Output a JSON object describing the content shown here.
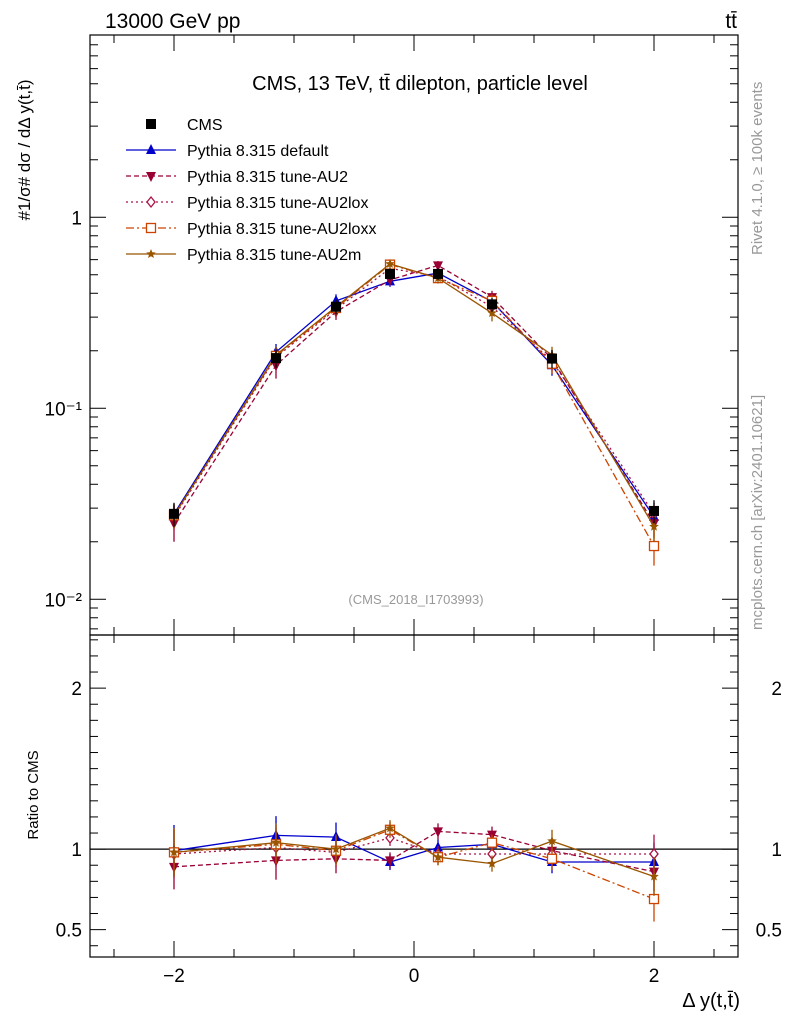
{
  "header": {
    "left": "13000 GeV pp",
    "right": "tt̄"
  },
  "side_labels": {
    "rivet": "Rivet 4.1.0, ≥ 100k events",
    "mcplots": "mcplots.cern.ch [arXiv:2401.10621]"
  },
  "chart_data": [
    {
      "type": "line",
      "panel": "main",
      "title": "CMS, 13 TeV, tt̄ dilepton, particle level",
      "watermark": "(CMS_2018_I1703993)",
      "ylabel": "#1/σ# dσ / dΔ y(t,t̄)",
      "yscale": "log",
      "ylim": [
        0.0065,
        9
      ],
      "xlim": [
        -2.7,
        2.7
      ],
      "ytick_labels": [
        {
          "value": 1,
          "label": "1"
        },
        {
          "value": 0.1,
          "label": "10⁻¹"
        },
        {
          "value": 0.01,
          "label": "10⁻²"
        }
      ],
      "x": [
        -2.0,
        -1.15,
        -0.65,
        -0.2,
        0.2,
        0.65,
        1.15,
        2.0
      ],
      "series": [
        {
          "name": "CMS",
          "color": "#000000",
          "marker": "square",
          "values": [
            0.028,
            0.183,
            0.34,
            0.505,
            0.505,
            0.35,
            0.182,
            0.029
          ],
          "errors": [
            0.004,
            0.02,
            0.03,
            0.035,
            0.035,
            0.03,
            0.02,
            0.004
          ]
        },
        {
          "name": "Pythia 8.315 default",
          "color": "#0000cc",
          "marker": "triangle-up",
          "dash": "",
          "values": [
            0.028,
            0.197,
            0.365,
            0.462,
            0.51,
            0.362,
            0.168,
            0.027
          ],
          "errors": [
            0.003,
            0.02,
            0.03,
            0.03,
            0.03,
            0.03,
            0.02,
            0.003
          ]
        },
        {
          "name": "Pythia 8.315 tune-AU2",
          "color": "#990033",
          "marker": "triangle-down",
          "dash": "5,3",
          "values": [
            0.025,
            0.168,
            0.32,
            0.47,
            0.56,
            0.382,
            0.181,
            0.025
          ],
          "errors": [
            0.005,
            0.025,
            0.03,
            0.03,
            0.03,
            0.03,
            0.02,
            0.004
          ]
        },
        {
          "name": "Pythia 8.315 tune-AU2lox",
          "color": "#aa1144",
          "marker": "diamond-open",
          "dash": "2,3",
          "values": [
            0.027,
            0.185,
            0.33,
            0.54,
            0.49,
            0.34,
            0.177,
            0.028
          ],
          "errors": [
            0.004,
            0.02,
            0.03,
            0.03,
            0.03,
            0.03,
            0.02,
            0.004
          ]
        },
        {
          "name": "Pythia 8.315 tune-AU2loxx",
          "color": "#cc4400",
          "marker": "square-open",
          "dash": "8,3,2,3",
          "values": [
            0.0275,
            0.188,
            0.335,
            0.565,
            0.48,
            0.365,
            0.171,
            0.019
          ],
          "errors": [
            0.004,
            0.02,
            0.03,
            0.03,
            0.03,
            0.03,
            0.02,
            0.004
          ]
        },
        {
          "name": "Pythia 8.315 tune-AU2m",
          "color": "#995500",
          "marker": "star",
          "dash": "",
          "values": [
            0.0275,
            0.19,
            0.34,
            0.57,
            0.48,
            0.315,
            0.19,
            0.024
          ],
          "errors": [
            0.004,
            0.02,
            0.03,
            0.03,
            0.03,
            0.03,
            0.02,
            0.004
          ]
        }
      ]
    },
    {
      "type": "line",
      "panel": "ratio",
      "ylabel": "Ratio to CMS",
      "ylim": [
        0.33,
        2.33
      ],
      "xlabel": "Δ y(t,t̄)",
      "ytick_labels": [
        {
          "value": 0.5,
          "label": "0.5"
        },
        {
          "value": 1,
          "label": "1"
        },
        {
          "value": 2,
          "label": "2"
        }
      ],
      "xtick_labels": [
        {
          "value": -2,
          "label": "−2"
        },
        {
          "value": 0,
          "label": "0"
        },
        {
          "value": 2,
          "label": "2"
        }
      ],
      "x": [
        -2.0,
        -1.15,
        -0.65,
        -0.2,
        0.2,
        0.65,
        1.15,
        2.0
      ],
      "series": [
        {
          "name": "Pythia 8.315 default",
          "values": [
            0.99,
            1.085,
            1.075,
            0.92,
            1.01,
            1.03,
            0.92,
            0.92
          ],
          "errors": [
            0.16,
            0.12,
            0.09,
            0.05,
            0.05,
            0.05,
            0.07,
            0.12
          ]
        },
        {
          "name": "Pythia 8.315 tune-AU2",
          "values": [
            0.89,
            0.93,
            0.94,
            0.93,
            1.11,
            1.09,
            0.99,
            0.86
          ],
          "errors": [
            0.14,
            0.12,
            0.09,
            0.05,
            0.05,
            0.05,
            0.07,
            0.12
          ]
        },
        {
          "name": "Pythia 8.315 tune-AU2lox",
          "values": [
            0.97,
            1.01,
            0.98,
            1.07,
            0.97,
            0.97,
            0.97,
            0.97
          ],
          "errors": [
            0.15,
            0.12,
            0.09,
            0.05,
            0.05,
            0.05,
            0.07,
            0.12
          ]
        },
        {
          "name": "Pythia 8.315 tune-AU2loxx",
          "values": [
            0.98,
            1.03,
            0.99,
            1.12,
            0.95,
            1.04,
            0.94,
            0.69
          ],
          "errors": [
            0.15,
            0.12,
            0.09,
            0.05,
            0.05,
            0.05,
            0.07,
            0.14
          ]
        },
        {
          "name": "Pythia 8.315 tune-AU2m",
          "values": [
            0.98,
            1.04,
            1.0,
            1.13,
            0.95,
            0.91,
            1.05,
            0.83
          ],
          "errors": [
            0.15,
            0.12,
            0.09,
            0.05,
            0.05,
            0.05,
            0.07,
            0.12
          ]
        }
      ]
    }
  ]
}
